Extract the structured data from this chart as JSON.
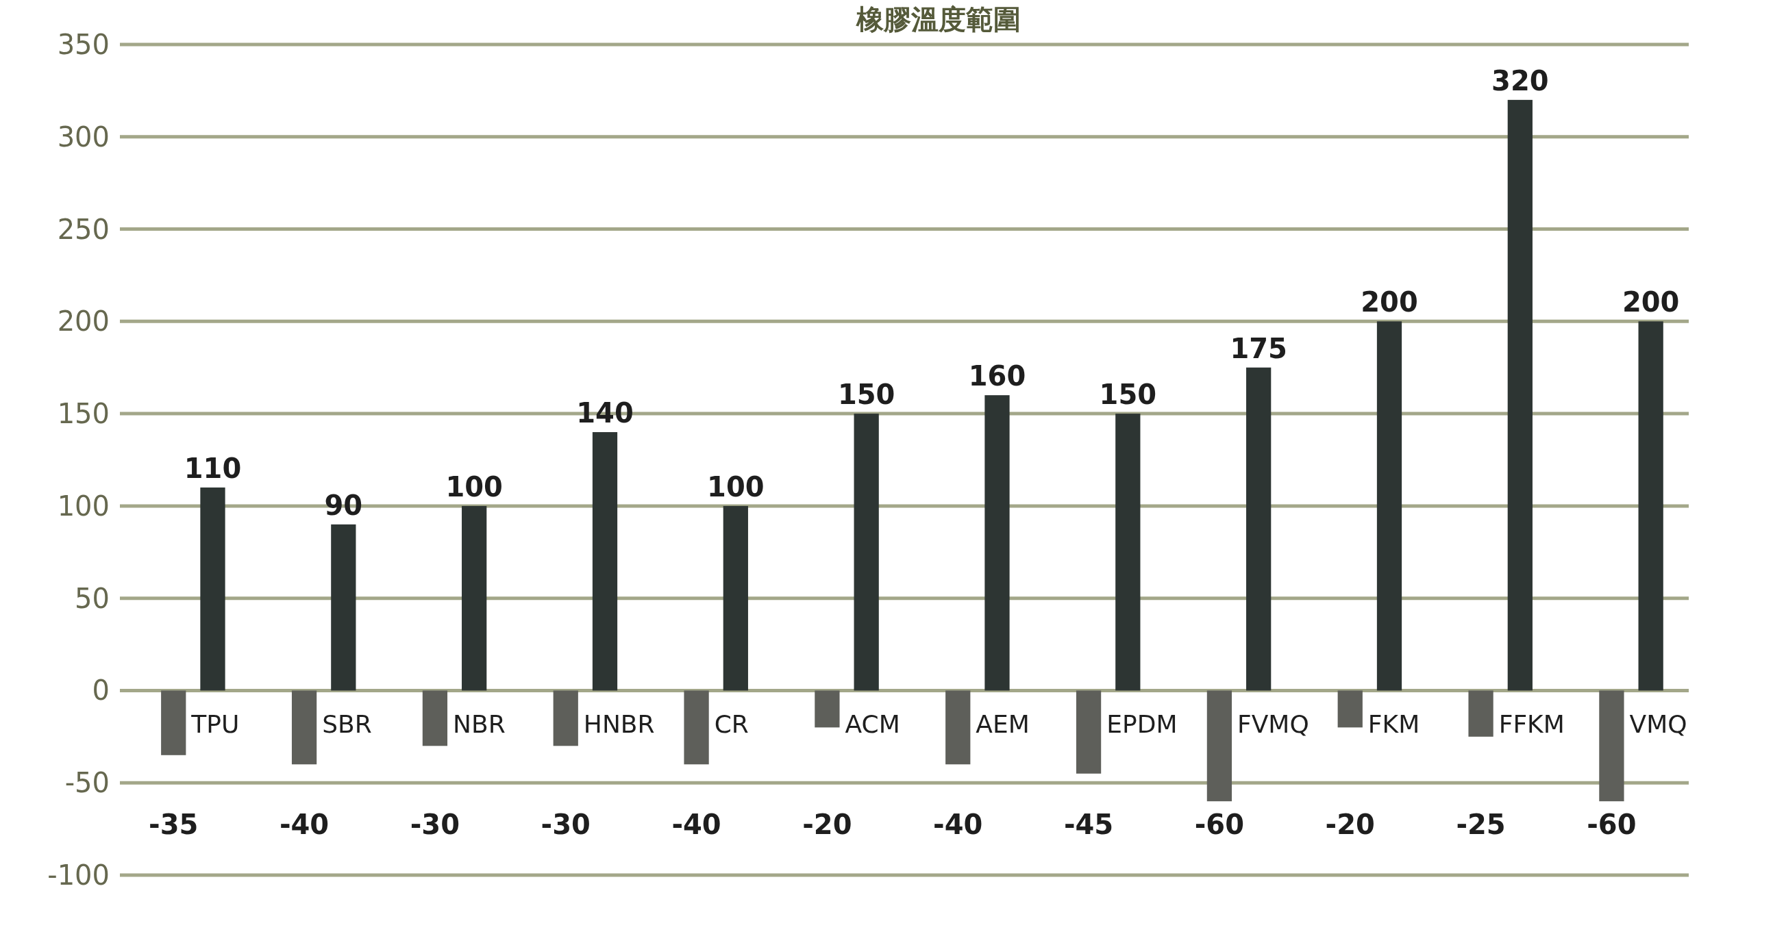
{
  "chart_data": {
    "type": "bar",
    "title": "橡膠溫度範圍",
    "categories": [
      "TPU",
      "SBR",
      "NBR",
      "HNBR",
      "CR",
      "ACM",
      "AEM",
      "EPDM",
      "FVMQ",
      "FKM",
      "FFKM",
      "VMQ"
    ],
    "series": [
      {
        "color": "#5e5f5a",
        "values": [
          -35,
          -40,
          -30,
          -30,
          -40,
          -20,
          -40,
          -45,
          -60,
          -20,
          -25,
          -60
        ]
      },
      {
        "color": "#2d3533",
        "values": [
          110,
          90,
          100,
          140,
          100,
          150,
          160,
          150,
          175,
          200,
          320,
          200
        ]
      }
    ],
    "ylim": [
      -100,
      350
    ],
    "yticks": [
      -100,
      -50,
      0,
      50,
      100,
      150,
      200,
      250,
      300,
      350
    ],
    "grid": "y",
    "data_labels": true
  }
}
